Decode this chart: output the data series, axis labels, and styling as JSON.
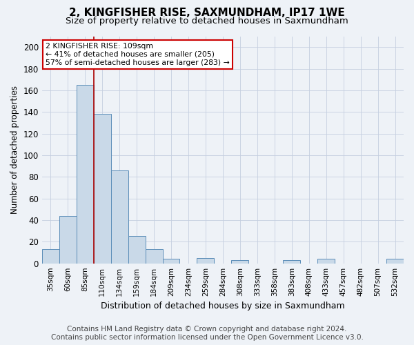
{
  "title": "2, KINGFISHER RISE, SAXMUNDHAM, IP17 1WE",
  "subtitle": "Size of property relative to detached houses in Saxmundham",
  "xlabel": "Distribution of detached houses by size in Saxmundham",
  "ylabel": "Number of detached properties",
  "categories": [
    "35sqm",
    "60sqm",
    "85sqm",
    "110sqm",
    "134sqm",
    "159sqm",
    "184sqm",
    "209sqm",
    "234sqm",
    "259sqm",
    "284sqm",
    "308sqm",
    "333sqm",
    "358sqm",
    "383sqm",
    "408sqm",
    "433sqm",
    "457sqm",
    "482sqm",
    "507sqm",
    "532sqm"
  ],
  "bar_heights": [
    13,
    44,
    165,
    138,
    86,
    25,
    13,
    4,
    0,
    5,
    0,
    3,
    0,
    0,
    3,
    0,
    4,
    0,
    0,
    0,
    4
  ],
  "bar_color": "#c9d9e8",
  "bar_edge_color": "#5b8db8",
  "vline_x": 2.5,
  "vline_color": "#aa0000",
  "annotation_line1": "2 KINGFISHER RISE: 109sqm",
  "annotation_line2": "← 41% of detached houses are smaller (205)",
  "annotation_line3": "57% of semi-detached houses are larger (283) →",
  "annotation_box_color": "#cc0000",
  "ylim": [
    0,
    210
  ],
  "yticks": [
    0,
    20,
    40,
    60,
    80,
    100,
    120,
    140,
    160,
    180,
    200
  ],
  "footer_line1": "Contains HM Land Registry data © Crown copyright and database right 2024.",
  "footer_line2": "Contains public sector information licensed under the Open Government Licence v3.0.",
  "background_color": "#eef2f7",
  "plot_bg_color": "#eef2f7",
  "title_fontsize": 11,
  "subtitle_fontsize": 9.5,
  "xlabel_fontsize": 9,
  "ylabel_fontsize": 8.5,
  "footer_fontsize": 7.5,
  "grid_color": "#c5cfe0"
}
